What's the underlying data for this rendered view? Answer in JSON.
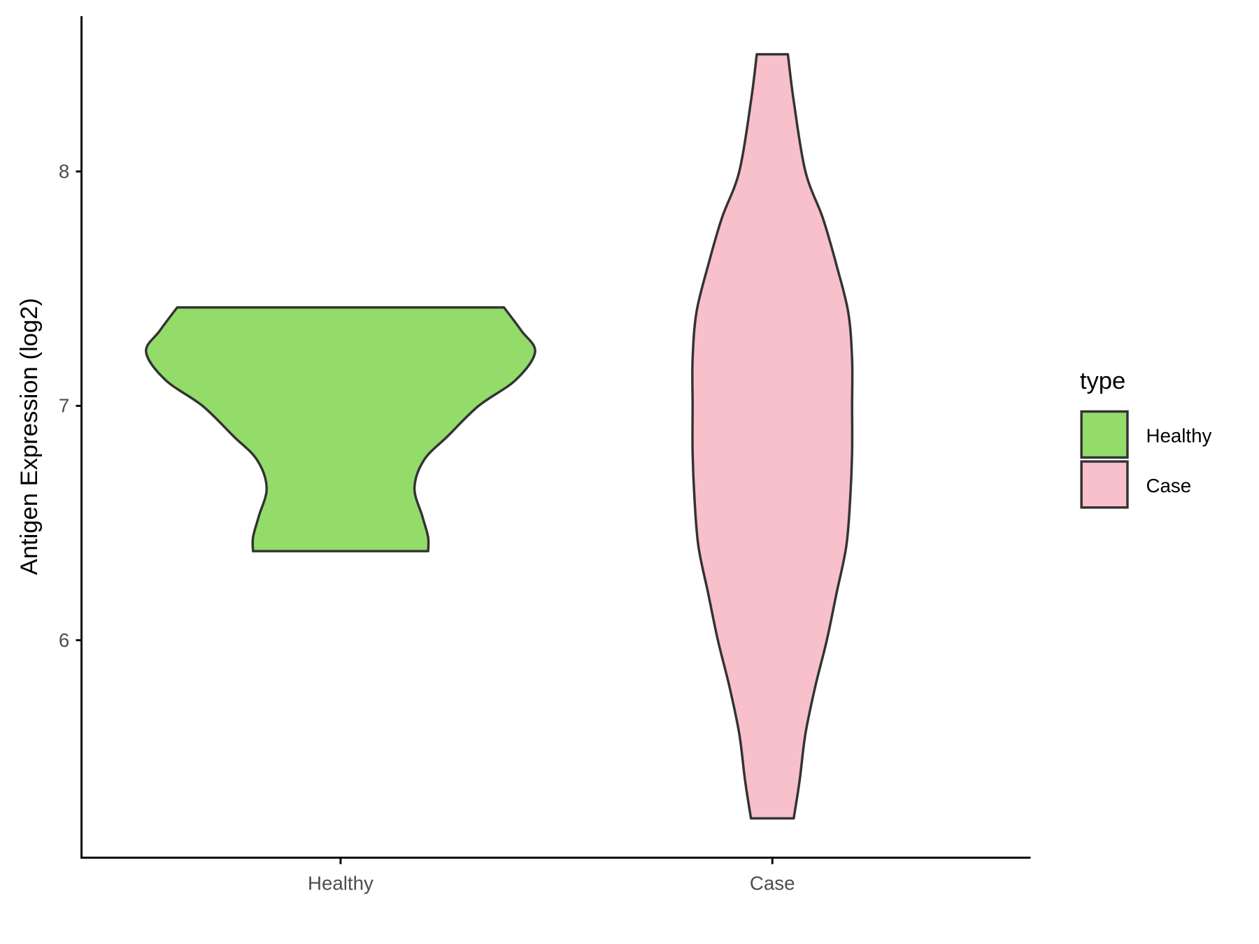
{
  "chart_data": {
    "type": "violin",
    "title": "",
    "xlabel": "",
    "ylabel": "Antigen Expression (log2)",
    "ylim": [
      5.07,
      8.66
    ],
    "yticks": [
      6,
      7,
      8
    ],
    "ytick_labels": [
      "6",
      "7",
      "8"
    ],
    "categories": [
      "Healthy",
      "Case"
    ],
    "grid": false,
    "legend": {
      "title": "type",
      "position": "right",
      "entries": [
        "Healthy",
        "Case"
      ]
    },
    "colors": {
      "Healthy": "#93dc6a",
      "Case": "#f7c0cb",
      "outline": "#333333"
    },
    "series": [
      {
        "name": "Healthy",
        "min": 6.38,
        "max": 7.42,
        "density_profile": [
          [
            6.38,
            0.45
          ],
          [
            6.44,
            0.45
          ],
          [
            6.53,
            0.42
          ],
          [
            6.65,
            0.38
          ],
          [
            6.77,
            0.43
          ],
          [
            6.87,
            0.55
          ],
          [
            7.0,
            0.71
          ],
          [
            7.11,
            0.9
          ],
          [
            7.23,
            1.0
          ],
          [
            7.32,
            0.93
          ],
          [
            7.42,
            0.84
          ]
        ]
      },
      {
        "name": "Case",
        "min": 5.24,
        "max": 8.5,
        "density_profile": [
          [
            5.24,
            0.11
          ],
          [
            5.4,
            0.14
          ],
          [
            5.6,
            0.17
          ],
          [
            5.8,
            0.22
          ],
          [
            6.0,
            0.28
          ],
          [
            6.2,
            0.33
          ],
          [
            6.4,
            0.38
          ],
          [
            6.6,
            0.4
          ],
          [
            6.8,
            0.41
          ],
          [
            7.0,
            0.41
          ],
          [
            7.2,
            0.41
          ],
          [
            7.4,
            0.39
          ],
          [
            7.6,
            0.33
          ],
          [
            7.8,
            0.26
          ],
          [
            8.0,
            0.17
          ],
          [
            8.3,
            0.11
          ],
          [
            8.5,
            0.08
          ]
        ]
      }
    ]
  }
}
